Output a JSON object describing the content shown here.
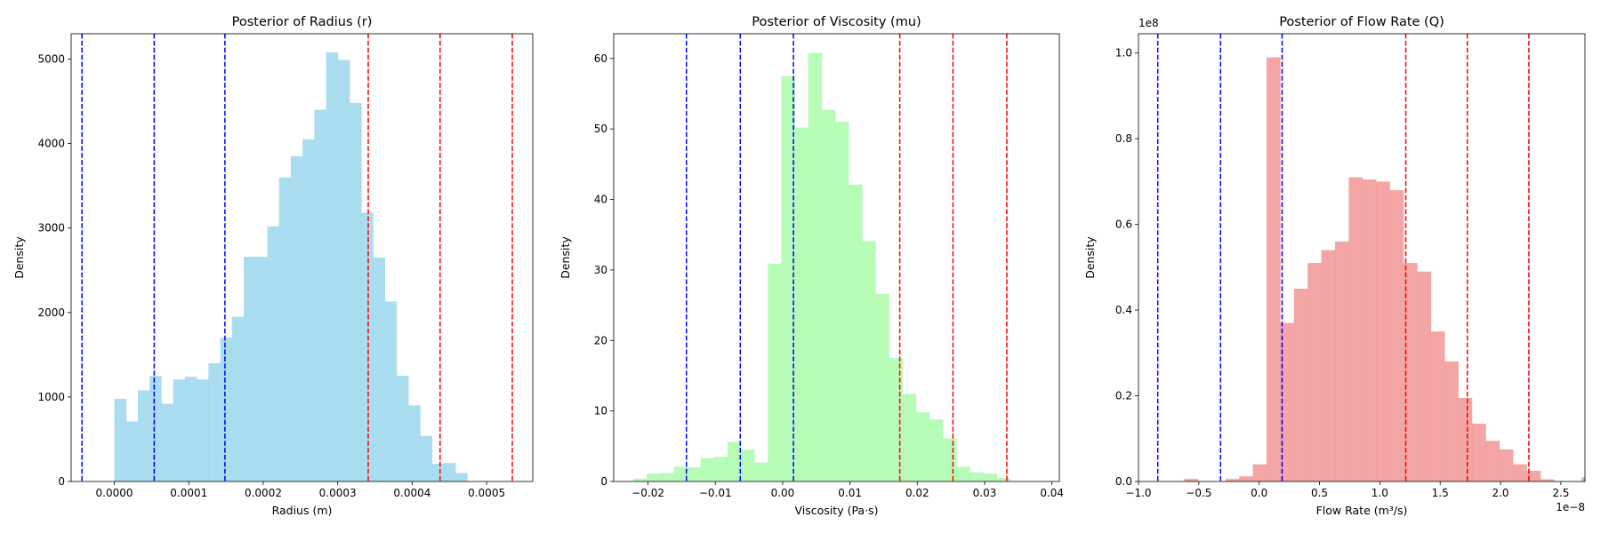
{
  "chart_data": [
    {
      "type": "bar",
      "title": "Posterior of Radius (r)",
      "xlabel": "Radius (m)",
      "ylabel": "Density",
      "xlim": [
        -5.8e-05,
        0.000562
      ],
      "ylim": [
        0,
        5300
      ],
      "xticks": [
        0.0,
        0.0001,
        0.0002,
        0.0003,
        0.0004,
        0.0005
      ],
      "xtick_labels": [
        "0.0000",
        "0.0001",
        "0.0002",
        "0.0003",
        "0.0004",
        "0.0005"
      ],
      "yticks": [
        0,
        1000,
        2000,
        3000,
        4000,
        5000
      ],
      "ytick_labels": [
        "0",
        "1000",
        "2000",
        "3000",
        "4000",
        "5000"
      ],
      "offset_text": "",
      "color": "#87CEEB",
      "bin_start": 0.0,
      "bin_width": 1.58e-05,
      "values": [
        980,
        710,
        1080,
        1250,
        920,
        1210,
        1240,
        1210,
        1400,
        1700,
        1950,
        2660,
        2660,
        3020,
        3600,
        3850,
        4050,
        4400,
        5080,
        4990,
        4480,
        3180,
        2650,
        2130,
        1250,
        900,
        540,
        210,
        220,
        100
      ],
      "vlines": [
        {
          "x": -4.35e-05,
          "color": "#0000ff"
        },
        {
          "x": 5.35e-05,
          "color": "#0000ff"
        },
        {
          "x": 0.0001485,
          "color": "#0000ff"
        },
        {
          "x": 0.000341,
          "color": "#ff0000"
        },
        {
          "x": 0.0004375,
          "color": "#ff0000"
        },
        {
          "x": 0.0005345,
          "color": "#ff0000"
        }
      ]
    },
    {
      "type": "bar",
      "title": "Posterior of Viscosity (mu)",
      "xlabel": "Viscosity (Pa·s)",
      "ylabel": "Density",
      "xlim": [
        -0.0251,
        0.0411
      ],
      "ylim": [
        0,
        63.5
      ],
      "xticks": [
        -0.02,
        -0.01,
        0.0,
        0.01,
        0.02,
        0.03,
        0.04
      ],
      "xtick_labels": [
        "−0.02",
        "−0.01",
        "0.00",
        "0.01",
        "0.02",
        "0.03",
        "0.04"
      ],
      "yticks": [
        0,
        10,
        20,
        30,
        40,
        50,
        60
      ],
      "ytick_labels": [
        "0",
        "10",
        "20",
        "30",
        "40",
        "50",
        "60"
      ],
      "offset_text": "",
      "color": "#98FB98",
      "bin_start": -0.0222,
      "bin_width": 0.002,
      "values": [
        0.4,
        1.1,
        1.2,
        2.1,
        2.0,
        3.3,
        3.5,
        5.6,
        4.5,
        2.7,
        30.9,
        57.5,
        50.2,
        60.8,
        52.7,
        51.0,
        42.1,
        34.1,
        26.6,
        17.5,
        12.4,
        9.8,
        8.8,
        6.1,
        2.1,
        1.3,
        1.1,
        0.5
      ],
      "vlines": [
        {
          "x": -0.0143,
          "color": "#0000ff"
        },
        {
          "x": -0.0063,
          "color": "#0000ff"
        },
        {
          "x": 0.0016,
          "color": "#0000ff"
        },
        {
          "x": 0.0174,
          "color": "#ff0000"
        },
        {
          "x": 0.0253,
          "color": "#ff0000"
        },
        {
          "x": 0.0333,
          "color": "#ff0000"
        }
      ]
    },
    {
      "type": "bar",
      "title": "Posterior of Flow Rate (Q)",
      "xlabel": "Flow Rate (m³/s)",
      "ylabel": "Density",
      "xlim": [
        -1.0,
        2.7
      ],
      "ylim": [
        0,
        1.045
      ],
      "xticks": [
        -1.0,
        -0.5,
        0.0,
        0.5,
        1.0,
        1.5,
        2.0,
        2.5
      ],
      "xtick_labels": [
        "−1.0",
        "−0.5",
        "0.0",
        "0.5",
        "1.0",
        "1.5",
        "2.0",
        "2.5"
      ],
      "yticks": [
        0,
        0.2,
        0.4,
        0.6,
        0.8,
        1.0
      ],
      "ytick_labels": [
        "0.0",
        "0.2",
        "0.4",
        "0.6",
        "0.8",
        "1.0"
      ],
      "y_offset_text": "1e8",
      "x_offset_text": "1e−8",
      "color": "#F08080",
      "bin_start": -0.62,
      "bin_width": 0.1135,
      "values": [
        0.006,
        0.0,
        0.0,
        0.006,
        0.012,
        0.04,
        0.99,
        0.37,
        0.45,
        0.51,
        0.54,
        0.56,
        0.71,
        0.705,
        0.7,
        0.68,
        0.51,
        0.49,
        0.35,
        0.28,
        0.195,
        0.135,
        0.095,
        0.075,
        0.04,
        0.025,
        0.005,
        0.0,
        0.0,
        0.01
      ],
      "vlines": [
        {
          "x": -0.84,
          "color": "#0000ff"
        },
        {
          "x": -0.32,
          "color": "#0000ff"
        },
        {
          "x": 0.19,
          "color": "#0000ff"
        },
        {
          "x": 1.215,
          "color": "#ff0000"
        },
        {
          "x": 1.725,
          "color": "#ff0000"
        },
        {
          "x": 2.235,
          "color": "#ff0000"
        }
      ]
    }
  ]
}
